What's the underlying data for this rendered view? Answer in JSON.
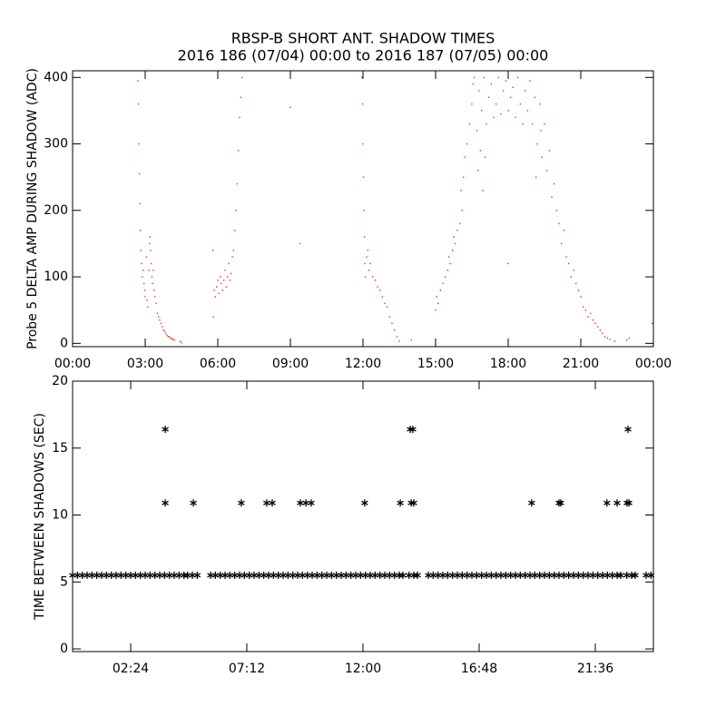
{
  "chart_data": [
    {
      "type": "scatter",
      "title": "RBSP-B SHORT ANT. SHADOW TIMES",
      "subtitle": "2016 186 (07/04) 00:00 to 2016 187 (07/05) 00:00",
      "y_label": "Probe 5 DELTA AMP DURING SHADOW (ADC)",
      "marker": "dot",
      "xlim": [
        0,
        24
      ],
      "xticks": [
        {
          "value": 0,
          "label": "00:00"
        },
        {
          "value": 3,
          "label": "03:00"
        },
        {
          "value": 6,
          "label": "06:00"
        },
        {
          "value": 9,
          "label": "09:00"
        },
        {
          "value": 12,
          "label": "12:00"
        },
        {
          "value": 15,
          "label": "15:00"
        },
        {
          "value": 18,
          "label": "18:00"
        },
        {
          "value": 21,
          "label": "21:00"
        },
        {
          "value": 24,
          "label": "00:00"
        }
      ],
      "ylim": [
        -5,
        410
      ],
      "yticks": [
        0,
        100,
        200,
        300,
        400
      ],
      "series": [
        {
          "color": "#e8341c",
          "x": [
            2.7,
            2.72,
            2.74,
            2.76,
            2.78,
            2.8,
            2.82,
            2.85,
            2.88,
            2.92,
            2.95,
            2.98,
            3.0,
            3.05,
            3.08,
            3.1,
            3.15,
            3.18,
            3.2,
            3.22,
            3.25,
            3.28,
            3.3,
            3.33,
            3.36,
            3.4,
            3.45,
            3.5,
            3.55,
            3.6,
            3.65,
            3.7,
            3.75,
            3.8,
            3.85,
            3.9,
            3.95,
            4.0,
            4.05,
            4.1,
            4.15,
            4.2,
            4.45,
            4.5,
            5.8,
            5.82,
            5.85,
            5.9,
            5.95,
            6.0,
            6.05,
            6.1,
            6.15,
            6.2,
            6.25,
            6.3,
            6.35,
            6.4,
            6.45,
            6.5,
            6.55,
            6.6,
            6.65,
            6.7,
            6.75,
            6.8,
            6.85,
            6.9,
            6.95,
            7.0,
            9.0,
            9.4,
            11.95,
            11.98,
            12.0,
            12.02,
            12.04,
            12.06,
            12.08,
            12.1,
            12.15,
            12.2,
            12.25,
            12.3,
            12.4,
            12.5,
            12.6,
            12.7,
            12.8,
            12.9,
            13.0,
            13.1,
            13.2,
            13.3,
            13.4,
            13.5,
            14.0,
            15.0,
            15.05,
            15.1,
            15.2,
            15.3,
            15.4,
            15.5,
            15.55,
            15.6,
            15.7,
            15.75,
            15.8,
            15.9,
            16.0,
            16.05,
            16.1,
            16.15,
            16.2,
            16.3,
            16.4,
            16.5,
            16.55,
            16.6,
            16.7,
            16.8,
            16.9,
            17.0,
            17.1,
            17.2,
            17.3,
            17.4,
            17.5,
            17.6,
            17.7,
            17.8,
            17.9,
            18.0,
            18.1,
            18.2,
            18.3,
            18.4,
            18.5,
            18.6,
            18.7,
            18.8,
            18.9,
            19.0,
            19.1,
            19.2,
            19.3,
            19.4,
            16.75,
            16.85,
            16.95,
            17.05,
            19.15,
            19.35,
            18.0,
            19.5,
            19.6,
            19.7,
            19.8,
            19.9,
            20.0,
            20.1,
            20.2,
            20.3,
            20.4,
            20.5,
            20.6,
            20.7,
            20.8,
            20.9,
            21.0,
            21.1,
            21.2,
            21.3,
            21.4,
            21.5,
            21.6,
            21.7,
            21.8,
            21.9,
            22.0,
            22.1,
            22.2,
            22.4,
            22.9,
            23.0,
            23.95,
            24.0
          ],
          "values": [
            395,
            360,
            300,
            255,
            210,
            170,
            140,
            120,
            100,
            110,
            90,
            80,
            70,
            130,
            65,
            55,
            110,
            150,
            160,
            140,
            120,
            100,
            90,
            110,
            80,
            70,
            60,
            45,
            40,
            35,
            30,
            25,
            20,
            18,
            15,
            12,
            10,
            10,
            8,
            7,
            6,
            5,
            3,
            1,
            140,
            40,
            80,
            70,
            85,
            95,
            75,
            100,
            90,
            80,
            95,
            110,
            85,
            100,
            120,
            95,
            105,
            130,
            140,
            170,
            200,
            240,
            290,
            340,
            370,
            400,
            355,
            150,
            400,
            360,
            300,
            250,
            200,
            160,
            120,
            100,
            130,
            140,
            110,
            120,
            100,
            95,
            85,
            80,
            70,
            60,
            55,
            40,
            30,
            20,
            10,
            3,
            5,
            50,
            70,
            60,
            80,
            90,
            100,
            110,
            130,
            120,
            140,
            160,
            150,
            170,
            180,
            230,
            200,
            250,
            280,
            300,
            330,
            360,
            390,
            400,
            320,
            380,
            350,
            400,
            330,
            370,
            390,
            340,
            360,
            400,
            345,
            380,
            395,
            350,
            370,
            385,
            340,
            400,
            360,
            330,
            380,
            350,
            395,
            330,
            370,
            300,
            360,
            280,
            260,
            290,
            230,
            280,
            250,
            320,
            120,
            330,
            260,
            290,
            220,
            240,
            200,
            180,
            150,
            170,
            130,
            120,
            100,
            110,
            90,
            80,
            70,
            55,
            50,
            40,
            45,
            35,
            30,
            25,
            20,
            15,
            10,
            8,
            6,
            3,
            5,
            8,
            30,
            20
          ]
        }
      ]
    },
    {
      "type": "scatter",
      "y_label": "TIME BETWEEN SHADOWS (SEC)",
      "marker": "asterisk",
      "xlim": [
        0,
        24
      ],
      "xticks": [
        {
          "value": 2.4,
          "label": "02:24"
        },
        {
          "value": 7.2,
          "label": "07:12"
        },
        {
          "value": 12,
          "label": "12:00"
        },
        {
          "value": 16.8,
          "label": "16:48"
        },
        {
          "value": 21.6,
          "label": "21:36"
        }
      ],
      "ylim": [
        -0.2,
        20
      ],
      "yticks": [
        0,
        5,
        10,
        15,
        20
      ],
      "series": [
        {
          "color": "#000000",
          "x": [
            0,
            0.2,
            0.4,
            0.6,
            0.8,
            1,
            1.2,
            1.4,
            1.6,
            1.8,
            2,
            2.2,
            2.4,
            2.6,
            2.8,
            3,
            3.2,
            3.4,
            3.6,
            3.8,
            4,
            4.2,
            4.4,
            4.6,
            4.75,
            4.95,
            5.15,
            5.7,
            5.9,
            6.1,
            6.3,
            6.5,
            6.7,
            6.9,
            7.1,
            7.3,
            7.5,
            7.7,
            7.9,
            8.1,
            8.3,
            8.5,
            8.7,
            8.9,
            9.1,
            9.3,
            9.5,
            9.7,
            9.9,
            10.1,
            10.3,
            10.5,
            10.7,
            10.9,
            11.1,
            11.3,
            11.5,
            11.7,
            11.9,
            12.1,
            12.3,
            12.5,
            12.7,
            12.9,
            13.1,
            13.3,
            13.5,
            13.65,
            13.9,
            14.1,
            14.25,
            14.7,
            14.9,
            15.1,
            15.3,
            15.5,
            15.7,
            15.9,
            16.1,
            16.3,
            16.5,
            16.7,
            16.9,
            17.1,
            17.3,
            17.5,
            17.7,
            17.9,
            18.1,
            18.3,
            18.5,
            18.7,
            18.9,
            19.1,
            19.3,
            19.5,
            19.7,
            19.9,
            20.1,
            20.3,
            20.5,
            20.7,
            20.9,
            21.1,
            21.3,
            21.5,
            21.7,
            21.9,
            22.1,
            22.3,
            22.5,
            22.65,
            22.9,
            23.1,
            23.25,
            23.7,
            23.9,
            3.83,
            3.83,
            4.99,
            6.97,
            8.02,
            8.25,
            9.41,
            9.64,
            9.86,
            12.07,
            13.54,
            13.99,
            14.1,
            13.95,
            14.06,
            18.97,
            20.1,
            20.17,
            22.08,
            22.5,
            22.91,
            22.99,
            22.95
          ],
          "values": [
            5.5,
            5.5,
            5.5,
            5.5,
            5.5,
            5.5,
            5.5,
            5.5,
            5.5,
            5.5,
            5.5,
            5.5,
            5.5,
            5.5,
            5.5,
            5.5,
            5.5,
            5.5,
            5.5,
            5.5,
            5.5,
            5.5,
            5.5,
            5.5,
            5.5,
            5.5,
            5.5,
            5.5,
            5.5,
            5.5,
            5.5,
            5.5,
            5.5,
            5.5,
            5.5,
            5.5,
            5.5,
            5.5,
            5.5,
            5.5,
            5.5,
            5.5,
            5.5,
            5.5,
            5.5,
            5.5,
            5.5,
            5.5,
            5.5,
            5.5,
            5.5,
            5.5,
            5.5,
            5.5,
            5.5,
            5.5,
            5.5,
            5.5,
            5.5,
            5.5,
            5.5,
            5.5,
            5.5,
            5.5,
            5.5,
            5.5,
            5.5,
            5.5,
            5.5,
            5.5,
            5.5,
            5.5,
            5.5,
            5.5,
            5.5,
            5.5,
            5.5,
            5.5,
            5.5,
            5.5,
            5.5,
            5.5,
            5.5,
            5.5,
            5.5,
            5.5,
            5.5,
            5.5,
            5.5,
            5.5,
            5.5,
            5.5,
            5.5,
            5.5,
            5.5,
            5.5,
            5.5,
            5.5,
            5.5,
            5.5,
            5.5,
            5.5,
            5.5,
            5.5,
            5.5,
            5.5,
            5.5,
            5.5,
            5.5,
            5.5,
            5.5,
            5.5,
            5.5,
            5.5,
            5.5,
            5.5,
            5.5,
            16.4,
            10.9,
            10.9,
            10.9,
            10.9,
            10.9,
            10.9,
            10.9,
            10.9,
            10.9,
            10.9,
            10.9,
            10.9,
            16.4,
            16.4,
            10.9,
            10.9,
            10.9,
            10.9,
            10.9,
            10.9,
            10.9,
            16.4
          ]
        }
      ]
    }
  ]
}
